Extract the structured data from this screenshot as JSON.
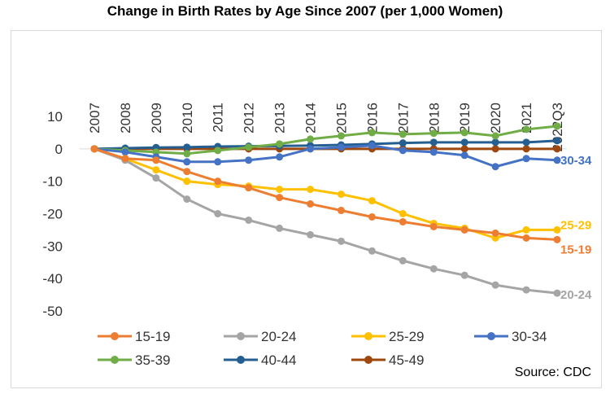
{
  "chart_data": {
    "type": "line",
    "title": "Change in Birth Rates by Age Since 2007 (per 1,000 Women)",
    "x": [
      "2007",
      "2008",
      "2009",
      "2010",
      "2011",
      "2012",
      "2013",
      "2014",
      "2015",
      "2016",
      "2017",
      "2018",
      "2019",
      "2020",
      "2021",
      "2022Q3"
    ],
    "ylim": [
      -50,
      10
    ],
    "yticks": [
      10,
      0,
      -10,
      -20,
      -30,
      -40,
      -50
    ],
    "grid": false,
    "legend_position": "bottom",
    "source": "Source: CDC",
    "series": [
      {
        "name": "15-19",
        "color": "#ed7d31",
        "end_label": "15-19",
        "values": [
          0,
          -3,
          -3.5,
          -7,
          -10,
          -12,
          -15,
          -17,
          -19,
          -21,
          -22.5,
          -24,
          -25,
          -26,
          -27.5,
          -28
        ]
      },
      {
        "name": "20-24",
        "color": "#a5a5a5",
        "end_label": "20-24",
        "values": [
          0,
          -3.5,
          -9,
          -15.5,
          -20,
          -22,
          -24.5,
          -26.5,
          -28.5,
          -31.5,
          -34.5,
          -37,
          -39,
          -42,
          -43.5,
          -44.5
        ]
      },
      {
        "name": "25-29",
        "color": "#ffc000",
        "end_label": "25-29",
        "values": [
          0,
          -3,
          -6.5,
          -10,
          -11,
          -11.5,
          -12.5,
          -12.5,
          -14,
          -16,
          -20,
          -23,
          -24.5,
          -27.5,
          -25,
          -25
        ]
      },
      {
        "name": "30-34",
        "color": "#4472c4",
        "end_label": "30-34",
        "values": [
          0,
          -1,
          -2.5,
          -4,
          -4,
          -3.5,
          -2.5,
          0,
          0.5,
          1,
          -0.5,
          -1,
          -2,
          -5.5,
          -3,
          -3.5
        ]
      },
      {
        "name": "35-39",
        "color": "#70ad47",
        "end_label": "",
        "values": [
          0,
          -0.5,
          -1,
          -1.5,
          -0.5,
          0.5,
          1.5,
          3,
          4,
          5,
          4.5,
          4.8,
          5,
          4,
          6,
          7
        ]
      },
      {
        "name": "40-44",
        "color": "#255e91",
        "end_label": "",
        "values": [
          0,
          0.2,
          0.4,
          0.5,
          0.7,
          0.8,
          0.9,
          1,
          1.2,
          1.5,
          1.8,
          2,
          2,
          2,
          2,
          2.5
        ]
      },
      {
        "name": "45-49",
        "color": "#9e480e",
        "end_label": "",
        "values": [
          0,
          0,
          0,
          0,
          0,
          0,
          0,
          0,
          0,
          0,
          0,
          0,
          0,
          0,
          0,
          0
        ]
      }
    ]
  }
}
